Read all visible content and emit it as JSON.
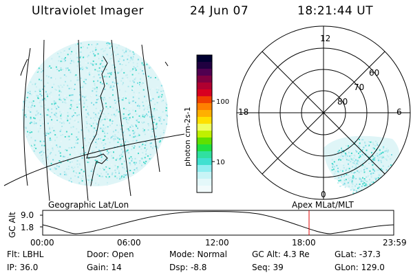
{
  "header": {
    "instrument": "Ultraviolet Imager",
    "date": "24 Jun 07",
    "time": "18:21:44 UT"
  },
  "colorbar": {
    "label": "photon cm-2s-1",
    "ticks": [
      "100",
      "10"
    ],
    "colors": [
      "#000030",
      "#200040",
      "#500050",
      "#800040",
      "#b00030",
      "#d80020",
      "#f04000",
      "#ff8000",
      "#ffb000",
      "#ffe000",
      "#f0ff60",
      "#c0f000",
      "#60e000",
      "#20e040",
      "#30e0a0",
      "#40e0d0",
      "#90eef0",
      "#c8f4f6",
      "#e4f8fa",
      "#f2fbfc"
    ]
  },
  "polar_plot": {
    "mlt_labels": [
      "12",
      "6",
      "0",
      "18"
    ],
    "mlat_labels": [
      "60",
      "70",
      "80"
    ]
  },
  "projections": {
    "left": "Geographic Lat/Lon",
    "right": "Apex MLat/MLT"
  },
  "altitude_plot": {
    "ylabel": "GC Alt",
    "yticks": [
      "9.0",
      "1.8"
    ],
    "xticks": [
      "00:00",
      "06:00",
      "12:00",
      "18:00",
      "23:59"
    ],
    "current_time_marker_color": "#e00000"
  },
  "info": {
    "flt": "Flt: LBHL",
    "ip": "IP: 36.0",
    "door": "Door: Open",
    "gain": "Gain: 14",
    "mode": "Mode: Normal",
    "dsp": "Dsp:    -8.8",
    "gcalt": "GC Alt: 4.3 Re",
    "seq": "Seq: 39",
    "glat": "GLat: -37.3",
    "glon": "GLon: 129.0"
  }
}
